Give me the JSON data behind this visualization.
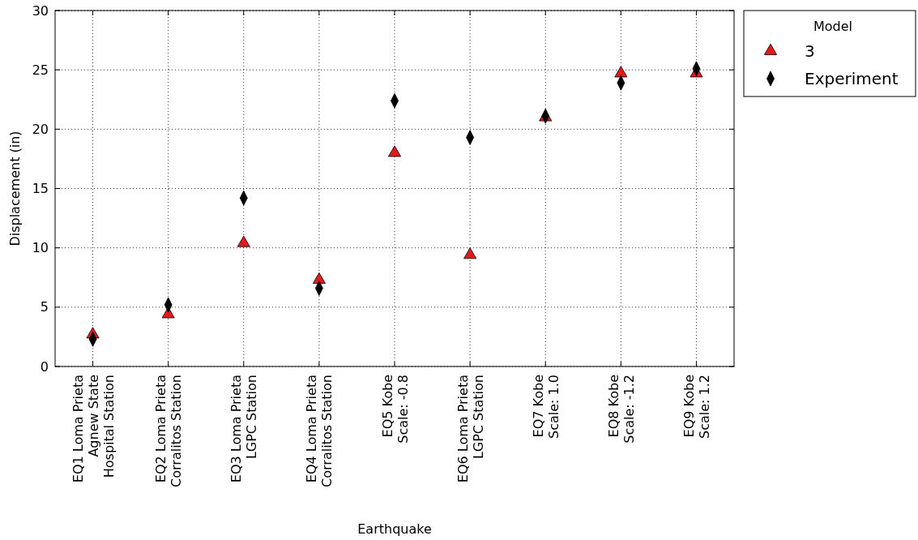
{
  "chart_data": {
    "type": "scatter",
    "xlabel": "Earthquake",
    "ylabel": "Displacement (in)",
    "legend_title": "Model",
    "categories": [
      "EQ1 Loma Prieta\nAgnew State\nHospital Station",
      "EQ2 Loma Prieta\nCorralitos Station",
      "EQ3 Loma Prieta\nLGPC Station",
      "EQ4 Loma Prieta\nCorralitos Station",
      "EQ5 Kobe\nScale: -0.8",
      "EQ6 Loma Prieta\nLGPC Station",
      "EQ7 Kobe\nScale: 1.0",
      "EQ8 Kobe\nScale: -1.2",
      "EQ9 Kobe\nScale: 1.2"
    ],
    "series": [
      {
        "name": "3",
        "color": "#e31a1c",
        "marker": "triangle",
        "values": [
          2.7,
          4.4,
          10.4,
          7.3,
          18.0,
          9.4,
          21.0,
          24.7,
          24.7
        ]
      },
      {
        "name": "Experiment",
        "color": "#000000",
        "marker": "diamond",
        "values": [
          2.3,
          5.2,
          14.2,
          6.6,
          22.4,
          19.3,
          21.1,
          23.9,
          25.1
        ]
      }
    ],
    "ylim": [
      0,
      30
    ],
    "yticks": [
      0,
      5,
      10,
      15,
      20,
      25,
      30
    ],
    "grid": true,
    "legend": "top right"
  }
}
